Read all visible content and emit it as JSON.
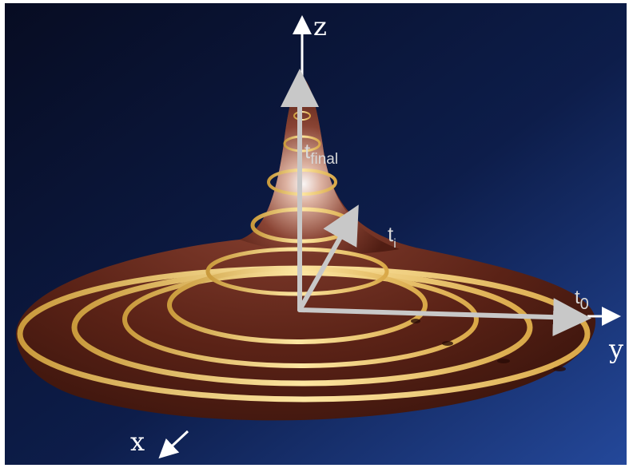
{
  "axes": {
    "z": "z",
    "y": "y",
    "x": "x"
  },
  "labels": {
    "t_final_base": "t",
    "t_final_sub": "final",
    "t_i_base": "t",
    "t_i_sub": "i",
    "t_0_base": "t",
    "t_0_sub": "0"
  },
  "colors": {
    "background_dark": "#0a1230",
    "background_mid": "#1a3a7a",
    "surface": "#6b2c1c",
    "surface_light": "#b07060",
    "stripe": "#f4d27a",
    "arrow": "#c8c8c8",
    "axis": "#ffffff"
  }
}
